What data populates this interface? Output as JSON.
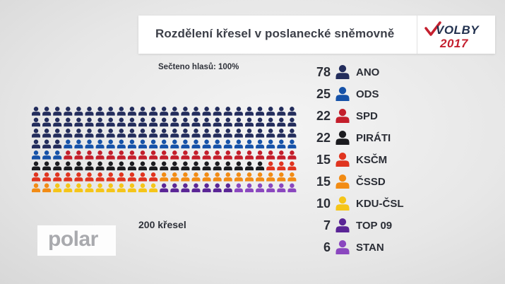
{
  "title": "Rozdělení křesel v poslanecké sněmovně",
  "logo": {
    "line1": "VOLBY",
    "line2": "2017"
  },
  "counted_label": "Sečteno hlasů: 100%",
  "seats_label": "200 křesel",
  "watermark": "polar",
  "chart_data": {
    "type": "waffle",
    "total": 200,
    "grid": {
      "columns": 25,
      "rows": 8
    },
    "series": [
      {
        "name": "ANO",
        "value": 78,
        "color": "#232d5c"
      },
      {
        "name": "ODS",
        "value": 25,
        "color": "#1652a8"
      },
      {
        "name": "SPD",
        "value": 22,
        "color": "#c41e2b"
      },
      {
        "name": "PIRÁTI",
        "value": 22,
        "color": "#1b1b1f"
      },
      {
        "name": "KSČM",
        "value": 15,
        "color": "#e0341f"
      },
      {
        "name": "ČSSD",
        "value": 15,
        "color": "#f28b14"
      },
      {
        "name": "KDU-ČSL",
        "value": 10,
        "color": "#f5c518"
      },
      {
        "name": "TOP 09",
        "value": 7,
        "color": "#5a2596"
      },
      {
        "name": "STAN",
        "value": 6,
        "color": "#8a47bf"
      }
    ]
  }
}
